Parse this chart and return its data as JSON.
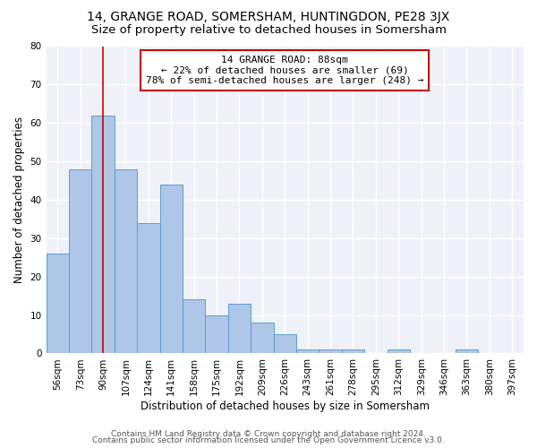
{
  "title1": "14, GRANGE ROAD, SOMERSHAM, HUNTINGDON, PE28 3JX",
  "title2": "Size of property relative to detached houses in Somersham",
  "xlabel": "Distribution of detached houses by size in Somersham",
  "ylabel": "Number of detached properties",
  "bins": [
    "56sqm",
    "73sqm",
    "90sqm",
    "107sqm",
    "124sqm",
    "141sqm",
    "158sqm",
    "175sqm",
    "192sqm",
    "209sqm",
    "226sqm",
    "243sqm",
    "261sqm",
    "278sqm",
    "295sqm",
    "312sqm",
    "329sqm",
    "346sqm",
    "363sqm",
    "380sqm",
    "397sqm"
  ],
  "values": [
    26,
    48,
    62,
    48,
    34,
    44,
    14,
    10,
    13,
    8,
    5,
    1,
    1,
    1,
    0,
    1,
    0,
    0,
    1,
    0,
    0
  ],
  "bar_color": "#aec6e8",
  "bar_edge_color": "#5a9fd4",
  "vline_x_index": 2,
  "vline_color": "#cc0000",
  "annotation_line1": "14 GRANGE ROAD: 88sqm",
  "annotation_line2": "← 22% of detached houses are smaller (69)",
  "annotation_line3": "78% of semi-detached houses are larger (248) →",
  "annotation_box_color": "#ffffff",
  "annotation_box_edge_color": "#cc0000",
  "ylim": [
    0,
    80
  ],
  "yticks": [
    0,
    10,
    20,
    30,
    40,
    50,
    60,
    70,
    80
  ],
  "footer1": "Contains HM Land Registry data © Crown copyright and database right 2024.",
  "footer2": "Contains public sector information licensed under the Open Government Licence v3.0.",
  "bg_color": "#eef2f8",
  "grid_color": "#ffffff",
  "title1_fontsize": 10,
  "title2_fontsize": 9.5,
  "xlabel_fontsize": 8.5,
  "ylabel_fontsize": 8.5,
  "tick_fontsize": 7.5,
  "annotation_fontsize": 8,
  "footer_fontsize": 6.5
}
